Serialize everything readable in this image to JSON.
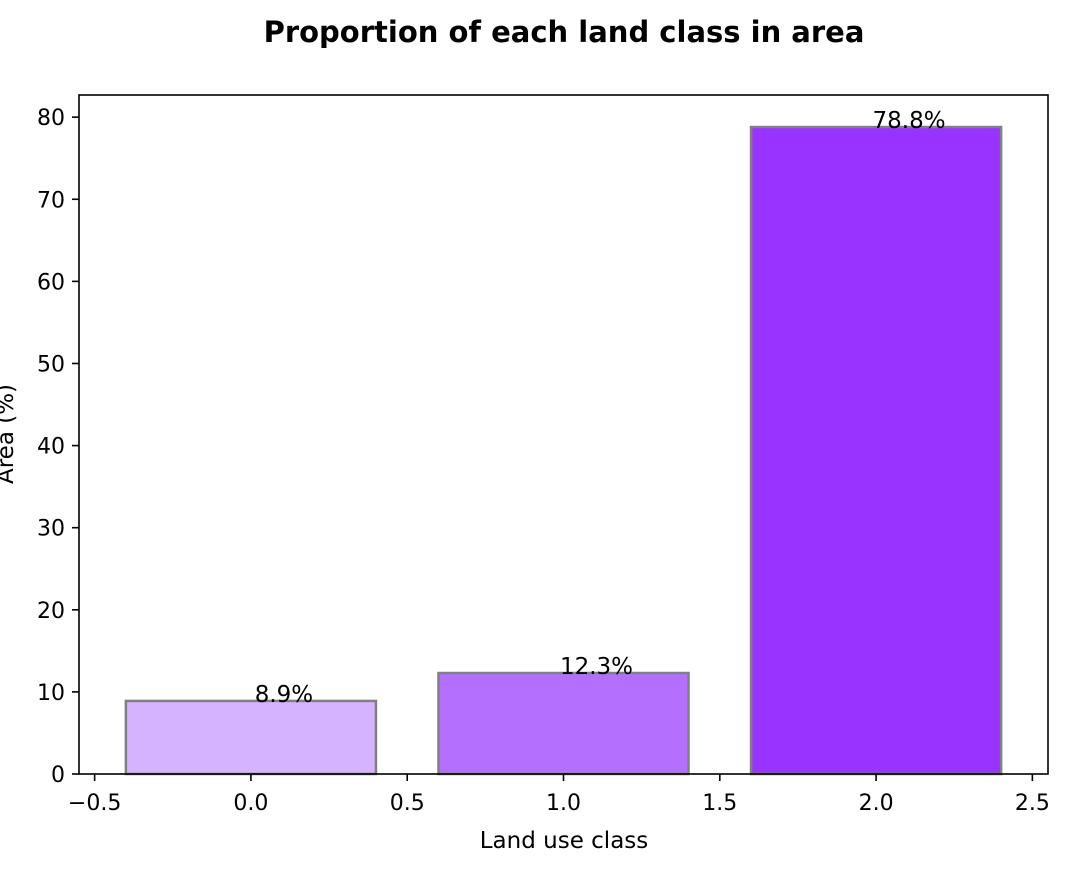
{
  "chart_data": {
    "type": "bar",
    "title": "Proportion of each land class in area",
    "xlabel": "Land use class",
    "ylabel": "Area (%)",
    "x": [
      0,
      1,
      2
    ],
    "values": [
      8.9,
      12.3,
      78.8
    ],
    "value_labels": [
      "8.9%",
      "12.3%",
      "78.8%"
    ],
    "bar_width": 0.8,
    "colors": [
      "#d5b3ff",
      "#b36fff",
      "#9933ff"
    ],
    "edge_color": "#808080",
    "xlim": [
      -0.55,
      2.55
    ],
    "ylim": [
      0,
      82.7
    ],
    "xticks": [
      -0.5,
      0.0,
      0.5,
      1.0,
      1.5,
      2.0,
      2.5
    ],
    "xtick_labels": [
      "−0.5",
      "0.0",
      "0.5",
      "1.0",
      "1.5",
      "2.0",
      "2.5"
    ],
    "yticks": [
      0,
      10,
      20,
      30,
      40,
      50,
      60,
      70,
      80
    ],
    "ytick_labels": [
      "0",
      "10",
      "20",
      "30",
      "40",
      "50",
      "60",
      "70",
      "80"
    ],
    "grid": false,
    "legend": "none"
  }
}
